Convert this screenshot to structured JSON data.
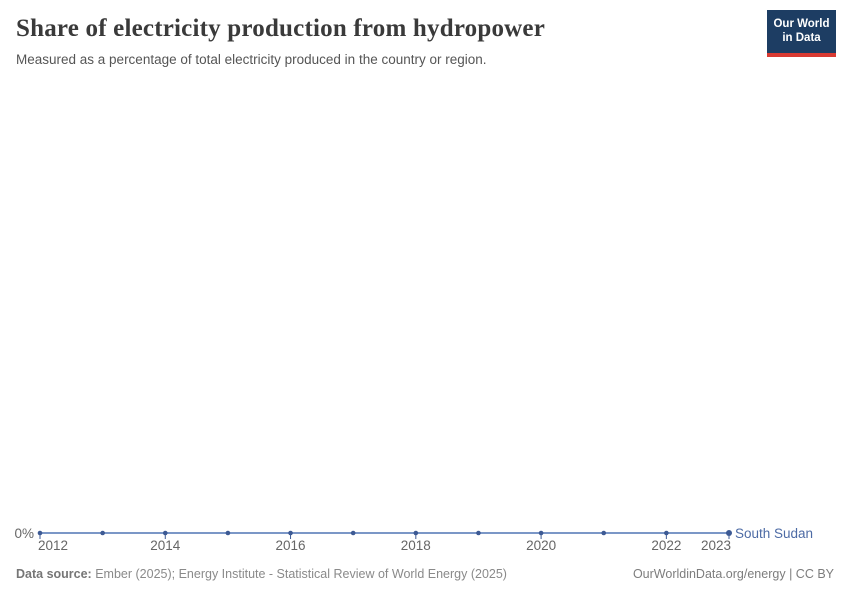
{
  "header": {
    "title": "Share of electricity production from hydropower",
    "subtitle": "Measured as a percentage of total electricity produced in the country or region.",
    "logo": {
      "line1": "Our World",
      "line2": "in Data"
    }
  },
  "chart_data": {
    "type": "line",
    "title": "Share of electricity production from hydropower",
    "subtitle": "Measured as a percentage of total electricity produced in the country or region.",
    "x": [
      2012,
      2013,
      2014,
      2015,
      2016,
      2017,
      2018,
      2019,
      2020,
      2021,
      2022,
      2023
    ],
    "series": [
      {
        "name": "South Sudan",
        "values": [
          0,
          0,
          0,
          0,
          0,
          0,
          0,
          0,
          0,
          0,
          0,
          0
        ],
        "color": "#4d6ba5"
      }
    ],
    "unit": "%",
    "xlim": [
      2012,
      2023
    ],
    "ylim": [
      0,
      0
    ],
    "y_tick_labels": [
      "0%"
    ],
    "x_tick_labels": [
      2012,
      2014,
      2016,
      2018,
      2020,
      2022,
      2023
    ],
    "grid": false,
    "legend": "inline-end-label"
  },
  "colors": {
    "line": "#7b97c7",
    "marker": "#3d5a94",
    "entity_label": "#4d6ba5",
    "axis_label": "#666666",
    "logo_bg": "#1d3d63",
    "logo_bar": "#d93a32"
  },
  "footer": {
    "source_label": "Data source:",
    "source_text": "Ember (2025); Energy Institute - Statistical Review of World Energy (2025)",
    "link": "OurWorldinData.org/energy",
    "separator": "|",
    "license": "CC BY"
  }
}
